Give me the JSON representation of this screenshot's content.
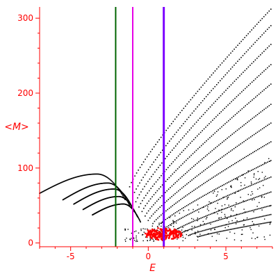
{
  "chart_data": {
    "type": "scatter",
    "title": "",
    "xlabel": "E",
    "ylabel": "<M>",
    "xlim": [
      -7,
      8
    ],
    "ylim": [
      -5,
      315
    ],
    "xticks": [
      "-5",
      "0",
      "5"
    ],
    "yticks": [
      "0",
      "100",
      "200",
      "300"
    ],
    "grid": false,
    "axis_color": "#ff0000",
    "point_color": "#000000",
    "cluster_color": "#ff0000",
    "vertical_lines": [
      {
        "x": -2.1,
        "color": "#006400"
      },
      {
        "x": -1.0,
        "color": "#e600e6"
      },
      {
        "x": 1.0,
        "color": "#7b00ff"
      }
    ],
    "curve_families": [
      {
        "x_start": -7.0,
        "x_end": -1.5,
        "peak": 92,
        "peak_x": -3.3,
        "end": 58
      },
      {
        "x_start": -5.5,
        "x_end": -1.2,
        "peak": 80,
        "peak_x": -2.6,
        "end": 50
      },
      {
        "x_start": -4.8,
        "x_end": -0.9,
        "peak": 72,
        "peak_x": -2.2,
        "end": 42
      },
      {
        "x_start": -4.2,
        "x_end": -0.7,
        "peak": 62,
        "peak_x": -1.9,
        "end": 35
      },
      {
        "x_start": -3.6,
        "x_end": -0.5,
        "peak": 52,
        "peak_x": -1.6,
        "end": 28
      }
    ],
    "upper_branches": [
      {
        "x_start": -1.2,
        "x_end": 7.9,
        "y_start": 75,
        "y_end": 312
      },
      {
        "x_start": -1.0,
        "x_end": 7.9,
        "y_start": 62,
        "y_end": 290
      },
      {
        "x_start": -0.8,
        "x_end": 7.9,
        "y_start": 55,
        "y_end": 265
      },
      {
        "x_start": -0.6,
        "x_end": 7.9,
        "y_start": 48,
        "y_end": 238
      },
      {
        "x_start": -0.4,
        "x_end": 7.9,
        "y_start": 42,
        "y_end": 212
      },
      {
        "x_start": -0.2,
        "x_end": 7.9,
        "y_start": 36,
        "y_end": 185
      },
      {
        "x_start": 0.0,
        "x_end": 7.9,
        "y_start": 30,
        "y_end": 160
      },
      {
        "x_start": 0.3,
        "x_end": 7.9,
        "y_start": 26,
        "y_end": 135
      },
      {
        "x_start": 0.6,
        "x_end": 7.9,
        "y_start": 22,
        "y_end": 110
      },
      {
        "x_start": 1.0,
        "x_end": 7.9,
        "y_start": 18,
        "y_end": 88
      },
      {
        "x_start": 1.5,
        "x_end": 7.9,
        "y_start": 14,
        "y_end": 68
      },
      {
        "x_start": 2.0,
        "x_end": 7.9,
        "y_start": 12,
        "y_end": 50
      },
      {
        "x_start": 2.6,
        "x_end": 7.9,
        "y_start": 10,
        "y_end": 38
      },
      {
        "x_start": 3.2,
        "x_end": 7.9,
        "y_start": 8,
        "y_end": 28
      }
    ],
    "cluster": {
      "x_center": 1.0,
      "y_center": 12,
      "x_spread": 1.2,
      "y_spread": 8,
      "count": 220
    }
  }
}
